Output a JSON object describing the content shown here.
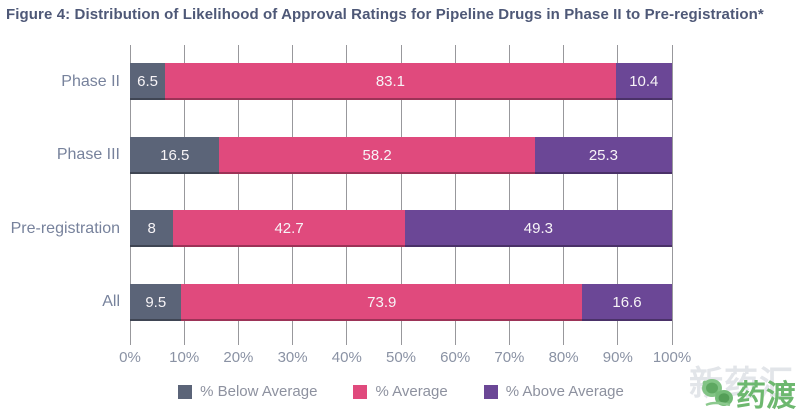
{
  "title": "Figure 4: Distribution of Likelihood of Approval Ratings for Pipeline Drugs in Phase II to Pre-registration*",
  "colors": {
    "below_average": "#5b6478",
    "average": "#e04a7d",
    "above_average": "#6b4796",
    "title_text": "#4e5877",
    "axis_text": "#8a92a4",
    "category_text": "#77829c",
    "gridline": "#98989c",
    "bar_value_text": "#f7f4f7",
    "brand_green": "#6db86f"
  },
  "chart_data": {
    "type": "bar",
    "stacked": true,
    "orientation": "horizontal",
    "title": "Figure 4: Distribution of Likelihood of Approval Ratings for Pipeline Drugs in Phase II to Pre-registration*",
    "categories": [
      "Phase II",
      "Phase III",
      "Pre-registration",
      "All"
    ],
    "series": [
      {
        "name": "% Below Average",
        "color": "#5b6478",
        "values": [
          6.5,
          16.5,
          8,
          9.5
        ],
        "labels": [
          "6.5",
          "16.5",
          "8",
          "9.5"
        ]
      },
      {
        "name": "% Average",
        "color": "#e04a7d",
        "values": [
          83.1,
          58.2,
          42.7,
          73.9
        ],
        "labels": [
          "83.1",
          "58.2",
          "42.7",
          "73.9"
        ]
      },
      {
        "name": "% Above Average",
        "color": "#6b4796",
        "values": [
          10.4,
          25.3,
          49.3,
          16.6
        ],
        "labels": [
          "10.4",
          "25.3",
          "49.3",
          "16.6"
        ]
      }
    ],
    "x_ticks": [
      "0%",
      "10%",
      "20%",
      "30%",
      "40%",
      "50%",
      "60%",
      "70%",
      "80%",
      "90%",
      "100%"
    ],
    "xlim": [
      0,
      100
    ],
    "xlabel": "",
    "ylabel": "",
    "grid": true,
    "legend_position": "bottom"
  },
  "watermark": {
    "ghost_text": "新药汇",
    "logo_text": "药渡"
  }
}
